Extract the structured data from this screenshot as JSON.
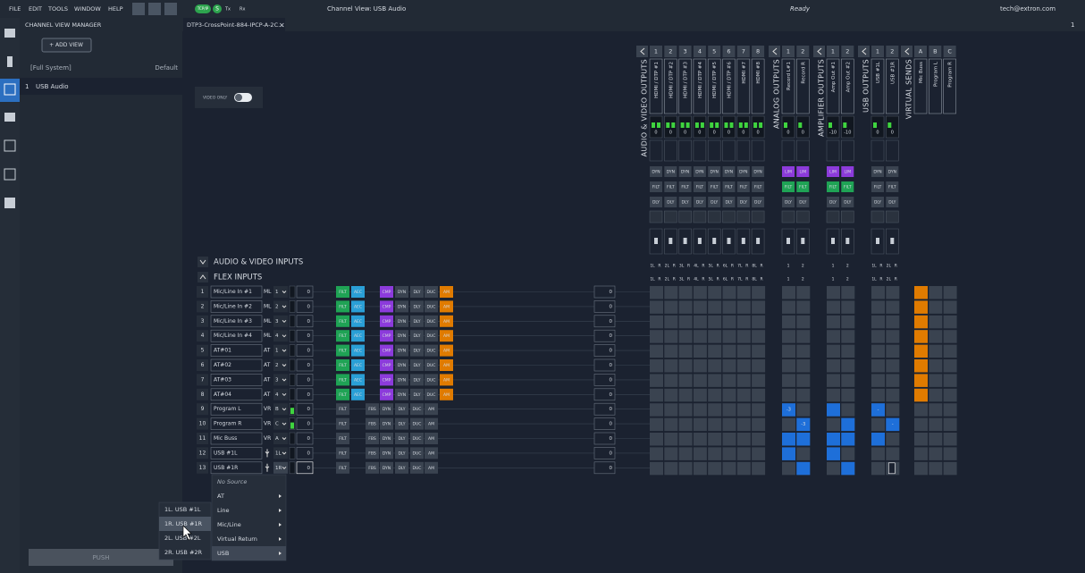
{
  "menu": [
    "FILE",
    "EDIT",
    "TOOLS",
    "WINDOW",
    "HELP"
  ],
  "toolbar": {
    "badge": "TCP/IP",
    "s": "S",
    "tx": "Tx",
    "rx": "Rx",
    "view": "Channel View: USB Audio",
    "status": "Ready",
    "user": "tech@extron.com"
  },
  "panel": {
    "title": "CHANNEL VIEW MANAGER",
    "add": "+ ADD VIEW",
    "system": "[Full System]",
    "default": "Default",
    "views": [
      {
        "num": "1",
        "name": "USB Audio"
      }
    ],
    "push": "PUSH"
  },
  "tab": {
    "name": "DTP3-CrossPoint-884-IPCP-A-2C...",
    "close": "×",
    "page": "1"
  },
  "video_only": "VIDEO ONLY",
  "outputs": [
    {
      "group": "AUDIO & VIDEO OUTPUTS",
      "channels": [
        {
          "num": "1",
          "name": "HDMI / DTP #1",
          "level": "0",
          "blocks": [
            "DYN",
            "FILT",
            "DLY"
          ],
          "taps": [
            "1L",
            "R"
          ]
        },
        {
          "num": "2",
          "name": "HDMI / DTP #2",
          "level": "0",
          "blocks": [
            "DYN",
            "FILT",
            "DLY"
          ],
          "taps": [
            "2L",
            "R"
          ]
        },
        {
          "num": "3",
          "name": "HDMI / DTP #3",
          "level": "0",
          "blocks": [
            "DYN",
            "FILT",
            "DLY"
          ],
          "taps": [
            "3L",
            "R"
          ]
        },
        {
          "num": "4",
          "name": "HDMI / DTP #4",
          "level": "0",
          "blocks": [
            "DYN",
            "FILT",
            "DLY"
          ],
          "taps": [
            "4L",
            "R"
          ]
        },
        {
          "num": "5",
          "name": "HDMI / DTP #5",
          "level": "0",
          "blocks": [
            "DYN",
            "FILT",
            "DLY"
          ],
          "taps": [
            "5L",
            "R"
          ]
        },
        {
          "num": "6",
          "name": "HDMI / DTP #6",
          "level": "0",
          "blocks": [
            "DYN",
            "FILT",
            "DLY"
          ],
          "taps": [
            "6L",
            "R"
          ]
        },
        {
          "num": "7",
          "name": "HDMI #7",
          "level": "0",
          "blocks": [
            "DYN",
            "FILT",
            "DLY"
          ],
          "taps": [
            "7L",
            "R"
          ]
        },
        {
          "num": "8",
          "name": "HDMI #8",
          "level": "0",
          "blocks": [
            "DYN",
            "FILT",
            "DLY"
          ],
          "taps": [
            "8L",
            "R"
          ]
        }
      ]
    },
    {
      "group": "ANALOG OUTPUTS",
      "channels": [
        {
          "num": "1",
          "name": "Record L#1",
          "level": "0",
          "blocks": [
            "LIM",
            "FILT",
            "DLY"
          ],
          "taps": [
            "1"
          ]
        },
        {
          "num": "2",
          "name": "Record R",
          "level": "0",
          "blocks": [
            "LIM",
            "FILT",
            "DLY"
          ],
          "taps": [
            "2"
          ]
        }
      ]
    },
    {
      "group": "AMPLIFIER OUTPUTS",
      "channels": [
        {
          "num": "1",
          "name": "Amp Out #1",
          "level": "-10",
          "blocks": [
            "LIM",
            "FILT",
            "DLY"
          ],
          "taps": [
            "1"
          ]
        },
        {
          "num": "2",
          "name": "Amp Out #2",
          "level": "-10",
          "blocks": [
            "LIM",
            "FILT",
            "DLY"
          ],
          "taps": [
            "2"
          ]
        }
      ]
    },
    {
      "group": "USB OUTPUTS",
      "channels": [
        {
          "num": "1",
          "name": "USB #1L",
          "level": "0",
          "blocks": [
            "DYN",
            "FILT",
            "DLY"
          ],
          "taps": [
            "1L",
            "R"
          ]
        },
        {
          "num": "2",
          "name": "USB #1R",
          "level": "0",
          "blocks": [
            "DYN",
            "FILT",
            "DLY"
          ],
          "taps": [
            "2L",
            "R"
          ]
        }
      ]
    },
    {
      "group": "VIRTUAL SENDS",
      "channels": [
        {
          "num": "A",
          "name": "Mic Buss"
        },
        {
          "num": "B",
          "name": "Program L"
        },
        {
          "num": "C",
          "name": "Program R"
        }
      ]
    }
  ],
  "input_sections": [
    "AUDIO & VIDEO INPUTS",
    "FLEX INPUTS"
  ],
  "inputs": [
    {
      "num": "1",
      "name": "Mic/Line In #1",
      "type": "ML",
      "ch": "1",
      "gain": "0",
      "gain2": "0",
      "colored": true,
      "blocks": [
        "FILT",
        "AEC",
        "CMP",
        "DYN",
        "DLY",
        "DUC",
        "AM"
      ]
    },
    {
      "num": "2",
      "name": "Mic/Line In #2",
      "type": "ML",
      "ch": "2",
      "gain": "0",
      "gain2": "0",
      "colored": true,
      "blocks": [
        "FILT",
        "AEC",
        "CMP",
        "DYN",
        "DLY",
        "DUC",
        "AM"
      ]
    },
    {
      "num": "3",
      "name": "Mic/Line In #3",
      "type": "ML",
      "ch": "3",
      "gain": "0",
      "gain2": "0",
      "colored": true,
      "blocks": [
        "FILT",
        "AEC",
        "CMP",
        "DYN",
        "DLY",
        "DUC",
        "AM"
      ]
    },
    {
      "num": "4",
      "name": "Mic/Line In #4",
      "type": "ML",
      "ch": "4",
      "gain": "0",
      "gain2": "0",
      "colored": true,
      "blocks": [
        "FILT",
        "AEC",
        "CMP",
        "DYN",
        "DLY",
        "DUC",
        "AM"
      ]
    },
    {
      "num": "5",
      "name": "AT#01",
      "type": "AT",
      "ch": "1",
      "gain": "0",
      "gain2": "0",
      "colored": true,
      "blocks": [
        "FILT",
        "AEC",
        "CMP",
        "DYN",
        "DLY",
        "DUC",
        "AM"
      ]
    },
    {
      "num": "6",
      "name": "AT#02",
      "type": "AT",
      "ch": "2",
      "gain": "0",
      "gain2": "0",
      "colored": true,
      "blocks": [
        "FILT",
        "AEC",
        "CMP",
        "DYN",
        "DLY",
        "DUC",
        "AM"
      ]
    },
    {
      "num": "7",
      "name": "AT#03",
      "type": "AT",
      "ch": "3",
      "gain": "0",
      "gain2": "0",
      "colored": true,
      "blocks": [
        "FILT",
        "AEC",
        "CMP",
        "DYN",
        "DLY",
        "DUC",
        "AM"
      ]
    },
    {
      "num": "8",
      "name": "AT#04",
      "type": "AT",
      "ch": "4",
      "gain": "0",
      "gain2": "0",
      "colored": true,
      "blocks": [
        "FILT",
        "AEC",
        "CMP",
        "DYN",
        "DLY",
        "DUC",
        "AM"
      ]
    },
    {
      "num": "9",
      "name": "Program L",
      "type": "VR",
      "ch": "B",
      "gain": "0",
      "gain2": "0",
      "colored": false,
      "blocks": [
        "FILT",
        "FBS",
        "DYN",
        "DLY",
        "DUC",
        "AM"
      ]
    },
    {
      "num": "10",
      "name": "Program R",
      "type": "VR",
      "ch": "C",
      "gain": "0",
      "gain2": "0",
      "colored": false,
      "blocks": [
        "FILT",
        "FBS",
        "DYN",
        "DLY",
        "DUC",
        "AM"
      ]
    },
    {
      "num": "11",
      "name": "Mic Buss",
      "type": "VR",
      "ch": "A",
      "gain": "0",
      "gain2": "0",
      "colored": false,
      "blocks": [
        "FILT",
        "FBS",
        "DYN",
        "DLY",
        "DUC",
        "AM"
      ]
    },
    {
      "num": "12",
      "name": "USB #1L",
      "ch": "1L",
      "gain": "0",
      "gain2": "0",
      "colored": false,
      "blocks": [
        "FILT",
        "FBS",
        "DYN",
        "DLY",
        "DUC",
        "AM"
      ]
    },
    {
      "num": "13",
      "name": "USB #1R",
      "ch": "1R",
      "gain": "0",
      "gain2": "0",
      "colored": false,
      "blocks": [
        "FILT",
        "FBS",
        "DYN",
        "DLY",
        "DUC",
        "AM"
      ]
    }
  ],
  "crosspoint_levels": [
    "-3",
    "-",
    "-3",
    "-"
  ],
  "source_menu": [
    "No Source",
    "AT",
    "Line",
    "Mic/Line",
    "Virtual Return",
    "USB"
  ],
  "usb_submenu": [
    "1L. USB #1L",
    "1R. USB #1R",
    "2L. USB #2L",
    "2R. USB #2R"
  ]
}
